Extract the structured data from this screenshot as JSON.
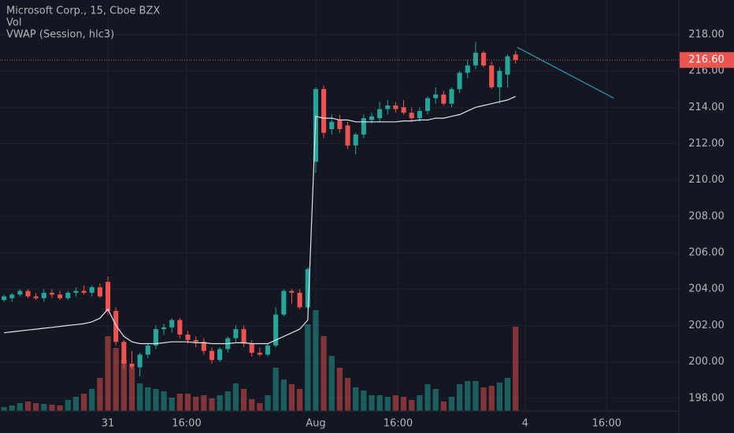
{
  "chart_data": {
    "type": "candlestick",
    "title": "Microsoft Corp., 15, Cboe BZX",
    "indicators": [
      "Vol",
      "VWAP (Session, hlc3)"
    ],
    "x": [
      -13,
      -12,
      -11,
      -10,
      -9,
      -8,
      -7,
      -6,
      -5,
      -4,
      -3,
      -2,
      -1,
      0,
      1,
      2,
      3,
      4,
      5,
      6,
      7,
      8,
      9,
      10,
      11,
      12,
      13,
      14,
      15,
      16,
      17,
      18,
      19,
      20,
      21,
      22,
      23,
      24,
      25,
      26,
      27,
      28,
      29,
      30,
      31,
      32,
      33,
      34,
      35,
      36,
      37,
      38,
      39,
      40,
      41,
      42,
      43,
      44,
      45,
      46,
      47,
      48,
      49,
      50,
      51
    ],
    "open": [
      203.4,
      203.5,
      203.7,
      203.9,
      203.6,
      203.5,
      203.8,
      203.7,
      203.5,
      203.8,
      203.9,
      203.8,
      204.1,
      204.4,
      202.8,
      201.1,
      199.9,
      199.7,
      200.4,
      200.9,
      201.8,
      201.9,
      202.3,
      201.5,
      201.2,
      201.1,
      200.6,
      200.1,
      200.7,
      201.3,
      201.8,
      201.0,
      200.5,
      200.4,
      200.9,
      202.6,
      203.9,
      203.8,
      203.0,
      211.0,
      215.0,
      212.8,
      213.3,
      213.0,
      211.9,
      212.5,
      213.3,
      213.4,
      213.9,
      214.1,
      214.0,
      213.7,
      213.4,
      213.8,
      214.5,
      214.7,
      214.2,
      215.0,
      215.9,
      216.3,
      217.0,
      216.3,
      215.1,
      215.8,
      216.9
    ],
    "high": [
      203.7,
      203.8,
      204.0,
      204.0,
      203.8,
      204.0,
      204.0,
      203.9,
      203.9,
      204.1,
      204.2,
      204.2,
      204.3,
      204.7,
      203.0,
      201.2,
      200.6,
      200.5,
      201.0,
      202.0,
      202.1,
      202.4,
      202.4,
      201.7,
      201.4,
      201.3,
      200.8,
      200.8,
      201.4,
      202.0,
      202.0,
      201.2,
      200.8,
      201.0,
      203.0,
      204.0,
      204.0,
      204.0,
      205.2,
      215.1,
      215.2,
      213.6,
      213.6,
      213.2,
      212.6,
      213.6,
      213.7,
      214.3,
      214.4,
      214.3,
      214.4,
      214.0,
      214.0,
      214.6,
      215.1,
      214.9,
      215.1,
      216.0,
      216.6,
      217.6,
      217.1,
      216.5,
      216.2,
      216.9,
      217.1
    ],
    "low": [
      203.3,
      203.3,
      203.6,
      203.5,
      203.4,
      203.3,
      203.5,
      203.4,
      203.4,
      203.6,
      203.7,
      203.6,
      203.5,
      202.6,
      200.9,
      199.6,
      199.6,
      199.2,
      200.2,
      200.7,
      201.5,
      201.6,
      201.3,
      201.0,
      200.8,
      200.4,
      199.9,
      200.0,
      200.5,
      201.1,
      200.8,
      200.3,
      200.3,
      200.3,
      200.8,
      202.5,
      203.2,
      202.9,
      202.9,
      210.4,
      212.3,
      212.5,
      212.6,
      211.7,
      211.4,
      212.3,
      213.1,
      213.2,
      213.6,
      213.7,
      213.6,
      213.2,
      213.2,
      213.6,
      214.2,
      214.1,
      214.0,
      214.8,
      215.6,
      216.1,
      216.2,
      215.0,
      214.2,
      215.1,
      216.4
    ],
    "close": [
      203.6,
      203.7,
      203.9,
      203.6,
      203.5,
      203.8,
      203.7,
      203.5,
      203.8,
      203.9,
      203.8,
      204.1,
      203.6,
      202.8,
      201.1,
      199.9,
      199.7,
      200.4,
      200.9,
      201.8,
      201.9,
      202.3,
      201.5,
      201.2,
      201.1,
      200.6,
      200.1,
      200.7,
      201.3,
      201.8,
      201.0,
      200.5,
      200.4,
      200.9,
      202.6,
      203.9,
      203.8,
      203.0,
      205.1,
      215.0,
      212.6,
      213.2,
      212.8,
      211.9,
      212.5,
      213.4,
      213.5,
      213.9,
      214.1,
      213.9,
      213.7,
      213.4,
      213.8,
      214.5,
      214.7,
      214.2,
      215.0,
      215.9,
      216.3,
      217.0,
      216.3,
      215.1,
      216.0,
      216.8,
      216.6
    ],
    "volume": [
      5,
      7,
      10,
      12,
      10,
      9,
      8,
      7,
      14,
      18,
      22,
      28,
      42,
      95,
      80,
      65,
      55,
      35,
      30,
      28,
      25,
      17,
      22,
      22,
      18,
      20,
      16,
      20,
      25,
      35,
      28,
      15,
      10,
      20,
      55,
      40,
      34,
      28,
      110,
      128,
      95,
      70,
      55,
      42,
      30,
      26,
      20,
      20,
      18,
      20,
      18,
      14,
      20,
      34,
      28,
      12,
      18,
      34,
      38,
      38,
      30,
      32,
      36,
      42,
      107
    ],
    "vwap": [
      201.6,
      201.65,
      201.7,
      201.75,
      201.8,
      201.85,
      201.9,
      201.95,
      202.0,
      202.05,
      202.1,
      202.2,
      202.4,
      202.9,
      202.0,
      201.4,
      201.1,
      201.0,
      201.0,
      201.0,
      201.05,
      201.1,
      201.1,
      201.1,
      201.05,
      201.05,
      201.0,
      201.0,
      201.0,
      201.05,
      201.05,
      201.0,
      201.0,
      201.0,
      201.2,
      201.4,
      201.6,
      201.8,
      202.3,
      213.5,
      213.4,
      213.4,
      213.3,
      213.3,
      213.2,
      213.2,
      213.2,
      213.2,
      213.2,
      213.2,
      213.25,
      213.25,
      213.3,
      213.3,
      213.4,
      213.4,
      213.5,
      213.6,
      213.8,
      214.0,
      214.1,
      214.2,
      214.3,
      214.4,
      214.6
    ],
    "trendline": {
      "x": [
        51.2,
        63.3
      ],
      "y": [
        217.3,
        214.5
      ],
      "color": "#2a9db0"
    },
    "last_price": {
      "value": 216.6,
      "label": "216.60"
    },
    "up_color": "#26a69a",
    "down_color": "#ef5350",
    "vwap_color": "#e0e3eb",
    "xlim": [
      -13.5,
      71.43
    ],
    "ylim": [
      197.3,
      219.9
    ],
    "vlim": [
      0,
      160
    ],
    "xticks": [
      {
        "value": 0,
        "label": "31"
      },
      {
        "value": 9.85,
        "label": "16:00"
      },
      {
        "value": 26,
        "label": "Aug"
      },
      {
        "value": 36.3,
        "label": "16:00"
      },
      {
        "value": 52.2,
        "label": "4"
      },
      {
        "value": 62.4,
        "label": "16:00"
      }
    ],
    "yticks": [
      {
        "value": 198,
        "label": "198.00"
      },
      {
        "value": 200,
        "label": "200.00"
      },
      {
        "value": 202,
        "label": "202.00"
      },
      {
        "value": 204,
        "label": "204.00"
      },
      {
        "value": 206,
        "label": "206.00"
      },
      {
        "value": 208,
        "label": "208.00"
      },
      {
        "value": 210,
        "label": "210.00"
      },
      {
        "value": 212,
        "label": "212.00"
      },
      {
        "value": 214,
        "label": "214.00"
      },
      {
        "value": 216,
        "label": "216.00"
      },
      {
        "value": 218,
        "label": "218.00"
      }
    ],
    "grid": true
  }
}
